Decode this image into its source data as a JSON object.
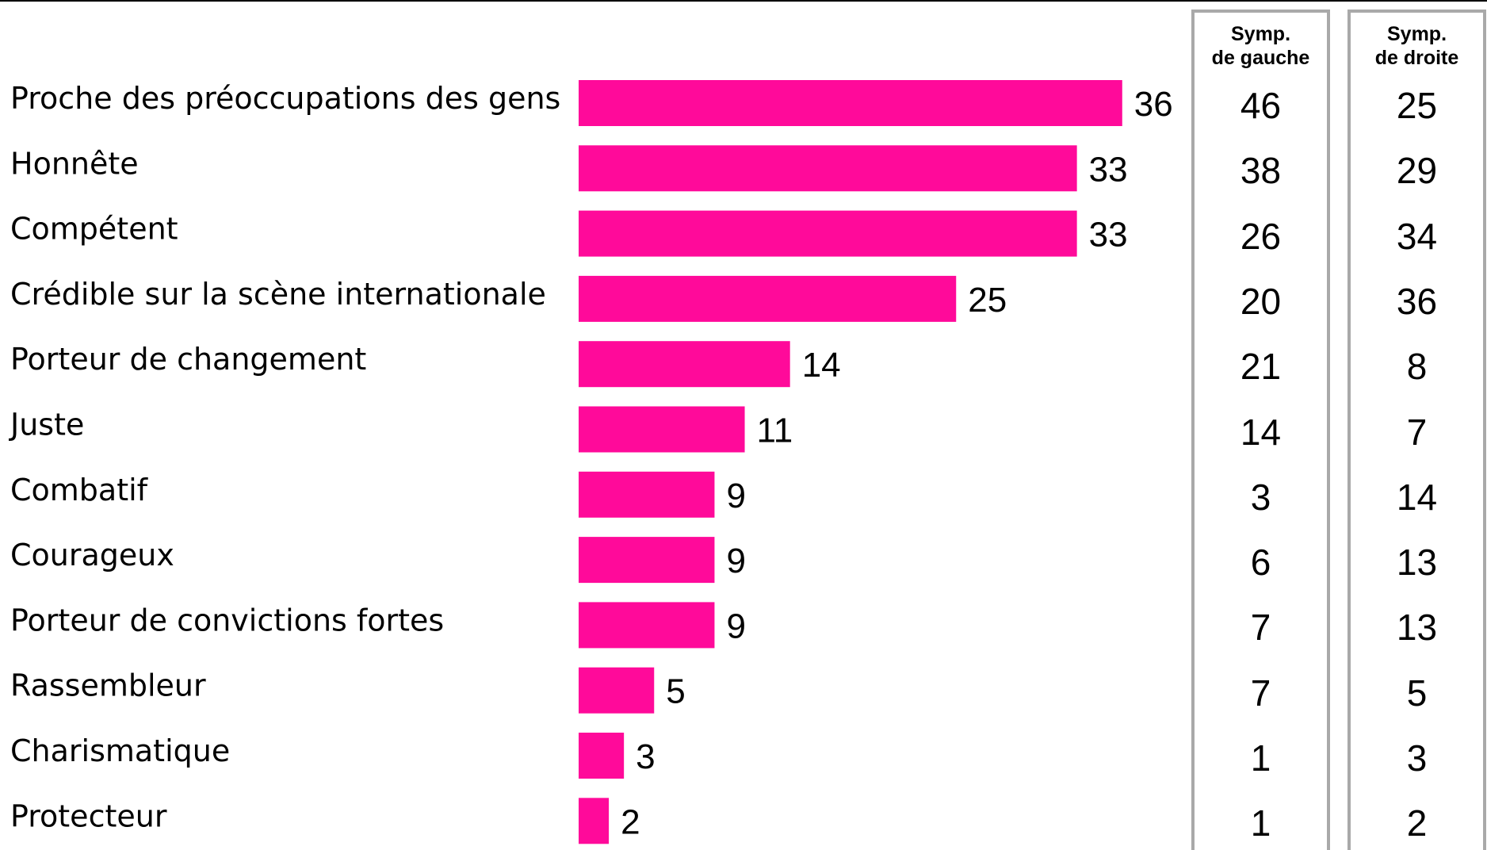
{
  "chart_data": {
    "type": "bar",
    "orientation": "horizontal",
    "categories": [
      "Proche des préoccupations des gens",
      "Honnête",
      "Compétent",
      "Crédible sur la scène internationale",
      "Porteur de changement",
      "Juste",
      "Combatif",
      "Courageux",
      "Porteur de convictions fortes",
      "Rassembleur",
      "Charismatique",
      "Protecteur"
    ],
    "values": [
      36,
      33,
      33,
      25,
      14,
      11,
      9,
      9,
      9,
      5,
      3,
      2
    ],
    "bar_color": "#ff0a9a",
    "grid": false,
    "legend": "none"
  },
  "columns": [
    {
      "header_line1": "Symp.",
      "header_line2": "de gauche",
      "values": [
        "46",
        "38",
        "26",
        "20",
        "21",
        "14",
        "3",
        "6",
        "7",
        "7",
        "1",
        "1"
      ]
    },
    {
      "header_line1": "Symp.",
      "header_line2": "de droite",
      "values": [
        "25",
        "29",
        "34",
        "36",
        "8",
        "7",
        "14",
        "13",
        "13",
        "5",
        "3",
        "2"
      ]
    }
  ]
}
